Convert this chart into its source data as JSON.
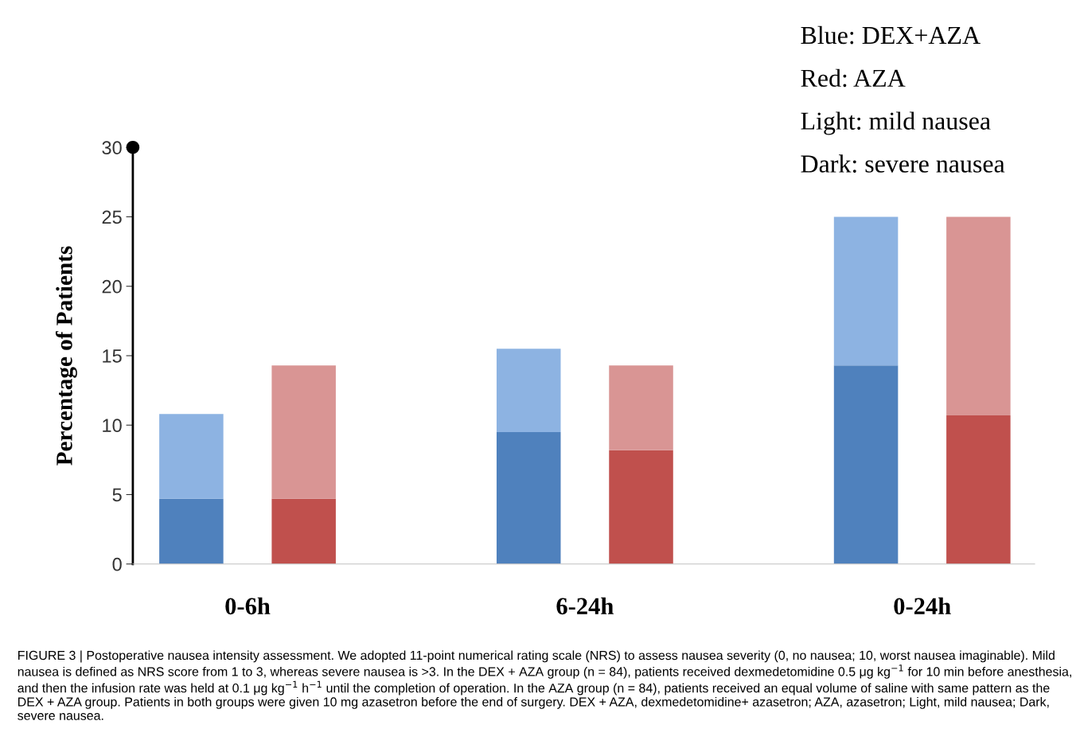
{
  "chart_data": {
    "type": "bar",
    "stacked": true,
    "ylabel": "Percentage of Patients",
    "categories": [
      "0-6h",
      null,
      null,
      "6-24h",
      null,
      null,
      "0-24h",
      null
    ],
    "series": [
      {
        "colors": [
          "#4f81bd",
          "#c0504d",
          null,
          "#4f81bd",
          "#c0504d",
          null,
          "#4f81bd",
          "#c0504d"
        ],
        "values": [
          4.7,
          4.7,
          null,
          9.5,
          8.2,
          null,
          14.3,
          10.7
        ]
      },
      {
        "colors": [
          "#8db3e2",
          "#d99594",
          null,
          "#8db3e2",
          "#d99594",
          null,
          "#8db3e2",
          "#d99594"
        ],
        "values": [
          6.1,
          9.6,
          null,
          6.0,
          6.1,
          null,
          10.7,
          14.3
        ]
      }
    ],
    "ylim": [
      0,
      30
    ],
    "yticks": [
      0,
      5,
      10,
      15,
      20,
      25,
      30
    ],
    "grid": false,
    "annotations": [
      "Blue: DEX+AZA",
      "Red: AZA",
      "Light: mild nausea",
      "Dark: severe nausea",
      "FIGURE 3 | Postoperative nausea intensity assessment. We adopted 11-point numerical rating scale (NRS) to assess nausea severity (0, no nausea; 10, worst nausea imaginable). Mild nausea is defined as NRS score from 1 to 3, whereas severe nausea is >3. In the DEX + AZA group (n = 84), patients received dexmedetomidine 0.5 μg kg$^{−1}$ for 10 min before anesthesia, and then the infusion rate was held at 0.1 μg kg$^{−1}$ h$^{−1}$ until the completion of operation. In the AZA group (n = 84), patients received an equal volume of saline with same pattern as the DEX + AZA group. Patients in both groups were given 10 mg azasetron before the end of surgery. DEX + AZA, dexmedetomidine+ azasetron; AZA, azasetron; Light, mild nausea; Dark, severe nausea."
    ]
  }
}
